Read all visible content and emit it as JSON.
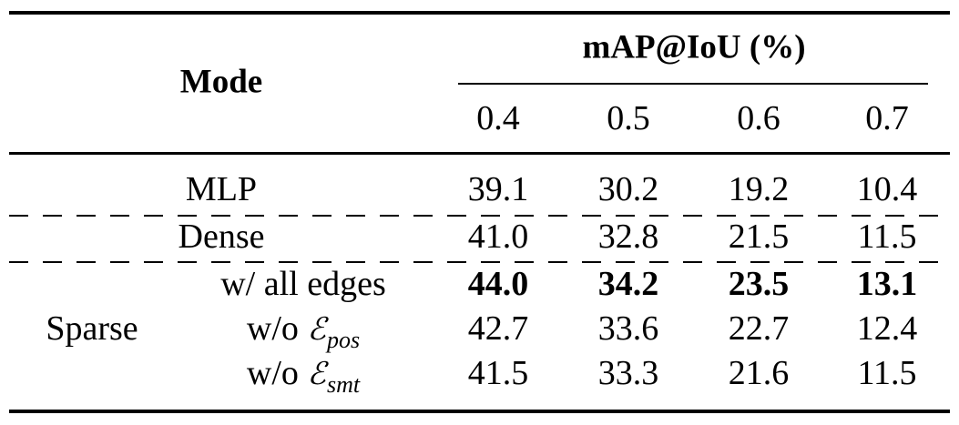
{
  "table": {
    "mode_header": "Mode",
    "metric_header": "mAP@IoU (%)",
    "thresholds": [
      "0.4",
      "0.5",
      "0.6",
      "0.7"
    ],
    "group_label_sparse": "Sparse",
    "rows": [
      {
        "mode": "MLP",
        "values": [
          "39.1",
          "30.2",
          "19.2",
          "10.4"
        ],
        "bold": false
      },
      {
        "mode": "Dense",
        "values": [
          "41.0",
          "32.8",
          "21.5",
          "11.5"
        ],
        "bold": false
      },
      {
        "mode": "w/ all edges",
        "values": [
          "44.0",
          "34.2",
          "23.5",
          "13.1"
        ],
        "bold": true
      },
      {
        "mode_prefix": "w/o",
        "mode_symbol": "ℰ",
        "mode_subscript": "pos",
        "values": [
          "42.7",
          "33.6",
          "22.7",
          "12.4"
        ],
        "bold": false
      },
      {
        "mode_prefix": "w/o",
        "mode_symbol": "ℰ",
        "mode_subscript": "smt",
        "values": [
          "41.5",
          "33.3",
          "21.6",
          "11.5"
        ],
        "bold": false
      }
    ]
  }
}
